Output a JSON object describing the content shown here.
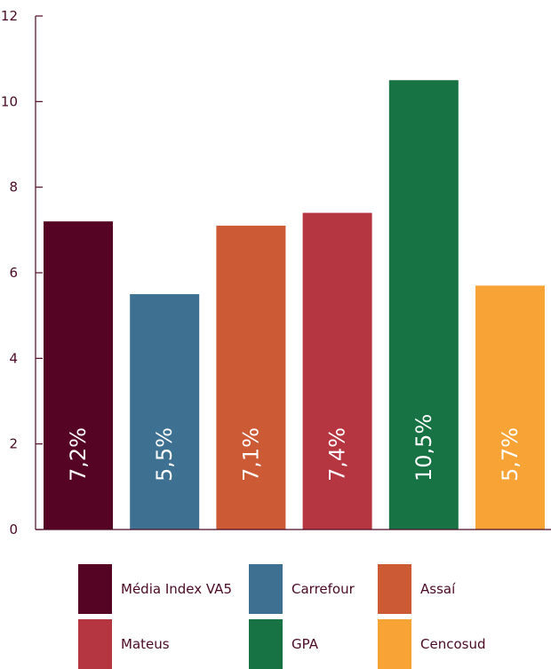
{
  "chart_data": {
    "type": "bar",
    "title": "",
    "xlabel": "",
    "ylabel": "",
    "ylim": [
      0,
      12
    ],
    "yticks": [
      "0",
      "2",
      "4",
      "6",
      "8",
      "10",
      "12"
    ],
    "grid": false,
    "legend_position": "bottom",
    "categories": [
      "Média Index VA5",
      "Carrefour",
      "Assaí",
      "Mateus",
      "GPA",
      "Cencosud"
    ],
    "values": [
      7.2,
      5.5,
      7.1,
      7.4,
      10.5,
      5.7
    ],
    "data_labels": [
      "7,2%",
      "5,5%",
      "7,1%",
      "7,4%",
      "10,5%",
      "5,7%"
    ],
    "colors": [
      "#560424",
      "#3e7091",
      "#cc5b35",
      "#b53540",
      "#177244",
      "#f7a335"
    ],
    "axis_color": "#4a0a24"
  }
}
